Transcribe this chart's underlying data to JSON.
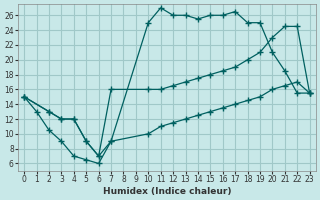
{
  "xlabel": "Humidex (Indice chaleur)",
  "bg_color": "#c8e8e8",
  "grid_color": "#a0c8c8",
  "line_color": "#006060",
  "xlim": [
    -0.5,
    23.5
  ],
  "ylim": [
    5,
    27.5
  ],
  "xticks": [
    0,
    1,
    2,
    3,
    4,
    5,
    6,
    7,
    8,
    9,
    10,
    11,
    12,
    13,
    14,
    15,
    16,
    17,
    18,
    19,
    20,
    21,
    22,
    23
  ],
  "yticks": [
    6,
    8,
    10,
    12,
    14,
    16,
    18,
    20,
    22,
    24,
    26
  ],
  "line1_x": [
    0,
    1,
    2,
    3,
    4,
    5,
    6,
    7,
    10,
    11,
    12,
    13,
    14,
    15,
    16,
    17,
    18,
    19,
    20,
    21,
    22,
    23
  ],
  "line1_y": [
    15,
    13,
    10.5,
    9,
    7,
    6.5,
    6,
    9,
    25,
    27,
    26,
    26,
    25.5,
    26,
    26,
    26.5,
    25,
    25,
    21,
    18.5,
    15.5,
    15.5
  ],
  "line2_x": [
    0,
    2,
    3,
    4,
    5,
    6,
    7,
    10,
    11,
    12,
    13,
    14,
    15,
    16,
    17,
    18,
    19,
    20,
    21,
    22,
    23
  ],
  "line2_y": [
    15,
    13,
    12,
    12,
    9,
    7,
    16,
    16,
    16,
    16.5,
    17,
    17.5,
    18,
    18.5,
    19,
    20,
    21,
    23,
    24.5,
    24.5,
    15.5
  ],
  "line3_x": [
    0,
    2,
    3,
    4,
    5,
    6,
    7,
    10,
    11,
    12,
    13,
    14,
    15,
    16,
    17,
    18,
    19,
    20,
    21,
    22,
    23
  ],
  "line3_y": [
    15,
    13,
    12,
    12,
    9,
    7,
    9,
    10,
    11,
    11.5,
    12,
    12.5,
    13,
    13.5,
    14,
    14.5,
    15,
    16,
    16.5,
    17,
    15.5
  ]
}
